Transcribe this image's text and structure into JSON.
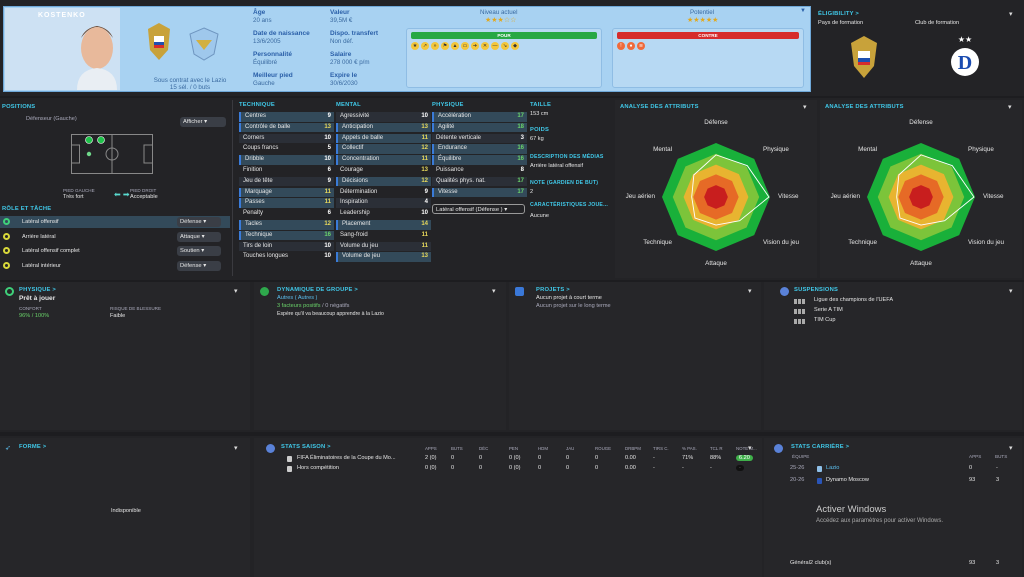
{
  "header": {
    "name": "KOSTENKO",
    "age_label": "Âge",
    "age": "20 ans",
    "dob_label": "Date de naissance",
    "dob": "13/6/2005",
    "pers_label": "Personnalité",
    "pers": "Équilibré",
    "foot_label": "Meilleur pied",
    "foot": "Gauche",
    "value_label": "Valeur",
    "value": "39,5M €",
    "transfer_label": "Dispo. transfert",
    "transfer": "Non déf.",
    "salary_label": "Salaire",
    "salary": "278 000 € p/m",
    "expiry_label": "Expire le",
    "expiry": "30/6/2030",
    "contract": "Sous contrat avec le Lazio",
    "contract_stats": "15 sél. / 0 buts",
    "level_label": "Niveau actuel",
    "level_stars": "★★★☆☆",
    "potential_label": "Potentiel",
    "potential_stars": "★★★★★",
    "pour": "POUR",
    "contre": "CONTRE",
    "eligibility_title": "ÉLIGIBILITY >",
    "pays_formation": "Pays de formation",
    "club_formation": "Club de formation"
  },
  "positions": {
    "title": "POSITIONS",
    "role": "Défenseur (Gauche)",
    "afficher": "Afficher",
    "pied_gauche_label": "PIED GAUCHE",
    "pied_gauche": "Très fort",
    "pied_droit_label": "PIED DROIT",
    "pied_droit": "Acceptable",
    "role_title": "RÔLE ET TÂCHE",
    "roles": [
      {
        "name": "Latéral offensif",
        "task": "Défense"
      },
      {
        "name": "Arrière latéral",
        "task": "Attaque"
      },
      {
        "name": "Latéral offensif complet",
        "task": "Soutien"
      },
      {
        "name": "Latéral intérieur",
        "task": "Défense"
      }
    ]
  },
  "attributes": {
    "tech_title": "TECHNIQUE",
    "mental_title": "MENTAL",
    "phys_title": "PHYSIQUE",
    "technique": [
      {
        "n": "Centres",
        "v": "9"
      },
      {
        "n": "Contrôle de balle",
        "v": "13"
      },
      {
        "n": "Corners",
        "v": "10"
      },
      {
        "n": "Coups francs",
        "v": "5"
      },
      {
        "n": "Dribble",
        "v": "10"
      },
      {
        "n": "Finition",
        "v": "6"
      },
      {
        "n": "Jeu de tête",
        "v": "9"
      },
      {
        "n": "Marquage",
        "v": "11"
      },
      {
        "n": "Passes",
        "v": "11"
      },
      {
        "n": "Penalty",
        "v": "6"
      },
      {
        "n": "Tacles",
        "v": "12"
      },
      {
        "n": "Technique",
        "v": "16"
      },
      {
        "n": "Tirs de loin",
        "v": "10"
      },
      {
        "n": "Touches longues",
        "v": "10"
      }
    ],
    "mental": [
      {
        "n": "Agressivité",
        "v": "10"
      },
      {
        "n": "Anticipation",
        "v": "13"
      },
      {
        "n": "Appels de balle",
        "v": "11"
      },
      {
        "n": "Collectif",
        "v": "12"
      },
      {
        "n": "Concentration",
        "v": "11"
      },
      {
        "n": "Courage",
        "v": "13"
      },
      {
        "n": "Décisions",
        "v": "12"
      },
      {
        "n": "Détermination",
        "v": "9"
      },
      {
        "n": "Inspiration",
        "v": "4"
      },
      {
        "n": "Leadership",
        "v": "10"
      },
      {
        "n": "Placement",
        "v": "14"
      },
      {
        "n": "Sang-froid",
        "v": "11"
      },
      {
        "n": "Volume du jeu",
        "v": "11"
      },
      {
        "n": "Volume de jeu",
        "v": "13"
      }
    ],
    "physique": [
      {
        "n": "Accélération",
        "v": "17"
      },
      {
        "n": "Agilité",
        "v": "18"
      },
      {
        "n": "Détente verticale",
        "v": "3"
      },
      {
        "n": "Endurance",
        "v": "16"
      },
      {
        "n": "Équilibre",
        "v": "16"
      },
      {
        "n": "Puissance",
        "v": "8"
      },
      {
        "n": "Qualités phys. nat.",
        "v": "17"
      },
      {
        "n": "Vitesse",
        "v": "17"
      }
    ],
    "role_select": "Latéral offensif (Défense )",
    "taille_label": "TAILLE",
    "taille": "153 cm",
    "poids_label": "POIDS",
    "poids": "67 kg",
    "desc_label": "DESCRIPTION DES MÉDIAS",
    "desc": "Arrière latéral offensif",
    "note_label": "NOTE (GARDIEN DE BUT)",
    "note": "2",
    "carac_label": "CARACTÉRISTIQUES JOUE...",
    "carac": "Aucune"
  },
  "radar": {
    "title": "ANALYSE DES ATTRIBUTS",
    "labels": [
      "Défense",
      "Physique",
      "Vitesse",
      "Vision du jeu",
      "Attaque",
      "Technique",
      "Jeu aérien",
      "Mental"
    ]
  },
  "mid": {
    "physique_title": "PHYSIQUE >",
    "physique_status": "Prêt à jouer",
    "confort_label": "CONFORT",
    "confort": "96% / 100%",
    "risque_label": "RISQUE DE BLESSURE",
    "risque": "Faible",
    "dyn_title": "DYNAMIQUE DE GROUPE >",
    "dyn_group": "Autres ( Autres )",
    "dyn_factors": "3 facteurs positifs",
    "dyn_neg": "/ 0 négatifs",
    "dyn_quote": "Espère qu'il va beaucoup apprendre à la Lazio",
    "proj_title": "PROJETS >",
    "proj1": "Aucun projet à court terme",
    "proj2": "Aucun projet sur le long terme",
    "susp_title": "SUSPENSIONS",
    "susp": [
      "Ligue des champions de l'UEFA",
      "Serie A TIM",
      "TIM Cup"
    ]
  },
  "bottom": {
    "forme_title": "FORME >",
    "indispo": "Indisponible",
    "stats_title": "STATS SAISON >",
    "stats_cols": [
      "APPS",
      "BUTS",
      "DÉC",
      "PEN",
      "HDM",
      "JAU",
      "ROUGE",
      "DRBPM",
      "TIRS C.",
      "% PAS.",
      "TCL R",
      "NOTE M..."
    ],
    "stats_rows": [
      {
        "name": "FIFA Éliminatoires de la Coupe du Mo...",
        "vals": [
          "2 (0)",
          "0",
          "0",
          "0 (0)",
          "0",
          "0",
          "0",
          "0.00",
          "-",
          "71%",
          "88%",
          "6.20"
        ]
      },
      {
        "name": "Hors compétition",
        "vals": [
          "0 (0)",
          "0",
          "0",
          "0 (0)",
          "0",
          "0",
          "0",
          "0.00",
          "-",
          "-",
          "-",
          "-"
        ]
      }
    ],
    "career_title": "STATS CARRIÈRE >",
    "career_cols": [
      "ÉQUIPE",
      "APPS",
      "BUTS"
    ],
    "career_rows": [
      {
        "season": "25-26",
        "team": "Lazio",
        "apps": "0",
        "buts": "-"
      },
      {
        "season": "20-26",
        "team": "Dynamo Moscow",
        "apps": "93",
        "buts": "3"
      }
    ],
    "career_total_label": "Général2 club(s)",
    "career_total_apps": "93",
    "career_total_buts": "3",
    "activate_title": "Activer Windows",
    "activate_sub": "Accédez aux paramètres pour activer Windows."
  }
}
